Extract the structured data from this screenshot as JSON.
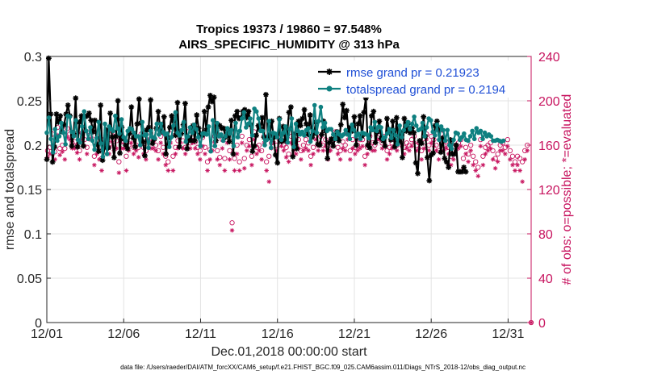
{
  "chart_data": {
    "type": "line",
    "title": "Tropics 19373 / 19860 = 97.548%",
    "subtitle": "AIRS_SPECIFIC_HUMIDITY @ 313 hPa",
    "xlabel": "Dec.01,2018 00:00:00 start",
    "ylabel": "rmse and totalspread",
    "ylabel_right": "# of obs: o=possible; *=evaluated",
    "footnote": "data file: /Users/raeder/DAI/ATM_forcXX/CAM6_setup/f.e21.FHIST_BGC.f09_025.CAM6assim.011/Diags_NTrS_2018-12/obs_diag_output.nc",
    "xlim": [
      0,
      31.5
    ],
    "ylim": [
      0,
      0.3
    ],
    "ylim_right": [
      0,
      240
    ],
    "x_ticks": [
      0,
      5,
      10,
      15,
      20,
      25,
      30
    ],
    "x_tick_labels": [
      "12/01",
      "12/06",
      "12/11",
      "12/16",
      "12/21",
      "12/26",
      "12/31"
    ],
    "y_ticks": [
      0,
      0.05,
      0.1,
      0.15,
      0.2,
      0.25,
      0.3
    ],
    "y_tick_labels": [
      "0",
      "0.05",
      "0.1",
      "0.15",
      "0.2",
      "0.25",
      "0.3"
    ],
    "y_right_ticks": [
      0,
      40,
      80,
      120,
      160,
      200,
      240
    ],
    "y_right_tick_labels": [
      "0",
      "40",
      "80",
      "120",
      "160",
      "200",
      "240"
    ],
    "grid": true,
    "legend_position": "top-right",
    "colors": {
      "rmse": "#000000",
      "spread": "#0e8080",
      "obs": "#c7135e",
      "legend_text": "#1f4fd6"
    },
    "series": [
      {
        "name": "rmse grand pr = 0.21923",
        "color": "#000000",
        "marker": "asterisk",
        "values": [
          0.184,
          0.298,
          0.235,
          0.181,
          0.198,
          0.235,
          0.226,
          0.233,
          0.215,
          0.223,
          0.235,
          0.245,
          0.233,
          0.199,
          0.213,
          0.253,
          0.198,
          0.226,
          0.233,
          0.199,
          0.232,
          0.233,
          0.236,
          0.228,
          0.215,
          0.228,
          0.201,
          0.193,
          0.245,
          0.183,
          0.197,
          0.217,
          0.197,
          0.236,
          0.209,
          0.186,
          0.21,
          0.25,
          0.191,
          0.22,
          0.207,
          0.2,
          0.196,
          0.213,
          0.243,
          0.208,
          0.198,
          0.224,
          0.252,
          0.225,
          0.204,
          0.188,
          0.217,
          0.22,
          0.251,
          0.202,
          0.207,
          0.219,
          0.238,
          0.218,
          0.215,
          0.232,
          0.19,
          0.208,
          0.22,
          0.233,
          0.227,
          0.211,
          0.248,
          0.198,
          0.213,
          0.223,
          0.247,
          0.196,
          0.208,
          0.205,
          0.222,
          0.205,
          0.234,
          0.219,
          0.213,
          0.211,
          0.238,
          0.217,
          0.243,
          0.256,
          0.249,
          0.254,
          0.205,
          0.223,
          0.222,
          0.219,
          0.219,
          0.209,
          0.217,
          0.204,
          0.228,
          0.19,
          0.233,
          0.238,
          0.23,
          0.231,
          0.238,
          0.24,
          0.231,
          0.238,
          0.223,
          0.193,
          0.199,
          0.211,
          0.222,
          0.218,
          0.231,
          0.209,
          0.257,
          0.208,
          0.212,
          0.227,
          0.209,
          0.189,
          0.18,
          0.23,
          0.204,
          0.221,
          0.205,
          0.211,
          0.237,
          0.243,
          0.187,
          0.213,
          0.196,
          0.227,
          0.222,
          0.23,
          0.24,
          0.224,
          0.212,
          0.234,
          0.209,
          0.213,
          0.226,
          0.201,
          0.2,
          0.212,
          0.227,
          0.216,
          0.185,
          0.203,
          0.207,
          0.199,
          0.208,
          0.215,
          0.205,
          0.223,
          0.246,
          0.231,
          0.239,
          0.212,
          0.22,
          0.216,
          0.232,
          0.2,
          0.224,
          0.233,
          0.21,
          0.237,
          0.253,
          0.2,
          0.197,
          0.233,
          0.238,
          0.203,
          0.215,
          0.227,
          0.208,
          0.205,
          0.199,
          0.23,
          0.217,
          0.206,
          0.227,
          0.198,
          0.231,
          0.204,
          0.215,
          0.186,
          0.23,
          0.216,
          0.225,
          0.214,
          0.219,
          0.214,
          0.18,
          0.168,
          0.205,
          0.202,
          0.232,
          0.21,
          0.186,
          0.16,
          0.189,
          0.191,
          0.222,
          0.227,
          0.217,
          0.192,
          0.208,
          0.185,
          0.181,
          0.175,
          0.206,
          0.19,
          0.19,
          0.2,
          0.17,
          0.17,
          0.17,
          0.175,
          0.17
        ],
        "x_step": 0.125
      },
      {
        "name": "totalspread grand pr = 0.2194",
        "color": "#0e8080",
        "marker": "circle",
        "values": [
          0.214,
          0.231,
          0.207,
          0.192,
          0.218,
          0.205,
          0.21,
          0.225,
          0.214,
          0.201,
          0.233,
          0.232,
          0.215,
          0.21,
          0.228,
          0.206,
          0.203,
          0.221,
          0.238,
          0.216,
          0.207,
          0.22,
          0.205,
          0.195,
          0.208,
          0.226,
          0.202,
          0.187,
          0.224,
          0.19,
          0.221,
          0.218,
          0.216,
          0.233,
          0.219,
          0.213,
          0.229,
          0.209,
          0.205,
          0.216,
          0.219,
          0.218,
          0.214,
          0.21,
          0.21,
          0.2,
          0.226,
          0.211,
          0.212,
          0.197,
          0.216,
          0.209,
          0.208,
          0.224,
          0.212,
          0.224,
          0.215,
          0.212,
          0.213,
          0.198,
          0.209,
          0.222,
          0.237,
          0.214,
          0.211,
          0.217,
          0.226,
          0.204,
          0.21,
          0.22,
          0.214,
          0.223,
          0.218,
          0.209,
          0.199,
          0.213,
          0.213,
          0.212,
          0.221,
          0.193,
          0.228,
          0.199,
          0.225,
          0.21,
          0.212,
          0.205,
          0.21,
          0.219,
          0.213,
          0.217,
          0.199,
          0.225,
          0.209,
          0.216,
          0.23,
          0.237,
          0.22,
          0.224,
          0.23,
          0.211,
          0.241,
          0.238,
          0.23,
          0.216,
          0.216,
          0.2,
          0.206,
          0.227,
          0.197,
          0.214,
          0.213,
          0.209,
          0.229,
          0.206,
          0.214,
          0.221,
          0.203,
          0.218,
          0.23,
          0.198,
          0.224,
          0.216,
          0.212,
          0.215,
          0.211,
          0.217,
          0.219,
          0.204,
          0.216,
          0.245,
          0.214,
          0.227,
          0.243,
          0.22,
          0.225,
          0.216,
          0.218,
          0.218,
          0.212,
          0.207,
          0.215,
          0.212,
          0.21,
          0.212,
          0.217,
          0.212,
          0.207,
          0.223,
          0.217,
          0.21,
          0.213,
          0.207,
          0.214,
          0.213,
          0.212,
          0.208,
          0.22,
          0.217,
          0.226,
          0.216,
          0.221,
          0.22,
          0.207,
          0.209,
          0.213,
          0.218,
          0.208,
          0.217,
          0.211,
          0.201,
          0.222,
          0.209,
          0.217,
          0.222,
          0.226,
          0.218,
          0.224,
          0.232,
          0.222,
          0.217,
          0.218,
          0.225,
          0.21,
          0.22,
          0.23,
          0.228,
          0.215,
          0.211,
          0.223,
          0.206,
          0.221,
          0.217,
          0.205,
          0.217,
          0.2,
          0.196,
          0.206,
          0.214,
          0.213,
          0.206,
          0.209,
          0.213,
          0.206,
          0.205,
          0.21,
          0.216,
          0.207,
          0.219,
          0.214,
          0.216,
          0.207,
          0.214,
          0.21,
          0.212,
          0.21,
          0.205,
          0.205,
          0.206,
          0.205,
          0.204,
          0.205
        ],
        "x_step": 0.135
      },
      {
        "name": "obs possible",
        "axis": "right",
        "color": "#c7135e",
        "marker": "open-circle",
        "values": [
          155,
          158,
          170,
          154,
          176,
          157,
          160,
          157,
          175,
          170,
          162,
          163,
          159,
          155,
          171,
          165,
          158,
          172,
          173,
          150,
          159,
          155,
          148,
          165,
          173,
          158,
          170,
          160,
          164,
          145,
          163,
          163,
          150,
          160,
          168,
          158,
          160,
          158,
          170,
          158,
          155,
          172,
          162,
          164,
          160,
          155,
          168,
          158,
          150,
          145,
          170,
          150,
          158,
          164,
          170,
          164,
          158,
          172,
          162,
          168,
          163,
          158,
          155,
          167,
          158,
          145,
          156,
          161,
          168,
          155,
          149,
          165,
          148,
          170,
          155,
          90,
          148,
          160,
          145,
          168,
          148,
          160,
          165,
          150,
          172,
          158,
          160,
          155,
          168,
          145,
          150,
          162,
          168,
          160,
          170,
          165,
          160,
          158,
          152,
          168,
          160,
          160,
          165,
          155,
          160,
          165,
          162,
          150,
          158,
          172,
          160,
          168,
          160,
          165,
          155,
          160,
          165,
          172,
          158,
          155,
          163,
          160,
          170,
          155,
          165,
          158,
          160,
          165,
          165,
          150,
          158,
          168,
          162,
          160,
          172,
          170,
          162,
          168,
          155,
          158,
          162,
          165,
          160,
          168,
          165,
          158,
          162,
          160,
          165,
          168,
          160,
          162,
          155,
          162,
          170,
          160,
          168,
          165,
          160,
          155,
          170,
          160,
          163,
          158,
          150,
          155,
          160,
          162,
          165,
          148,
          158,
          152,
          160,
          150,
          145,
          140,
          165,
          150,
          158,
          160,
          162,
          155,
          148,
          152,
          160,
          162,
          158,
          165,
          155,
          150,
          145,
          150,
          148,
          145,
          155,
          160,
          158
        ],
        "x_step": 0.16
      },
      {
        "name": "obs evaluated",
        "axis": "right",
        "color": "#c7135e",
        "marker": "asterisk",
        "values": [
          152,
          155,
          162,
          150,
          172,
          154,
          157,
          150,
          170,
          168,
          160,
          160,
          156,
          150,
          168,
          162,
          155,
          168,
          170,
          145,
          155,
          150,
          140,
          162,
          170,
          155,
          166,
          158,
          160,
          138,
          160,
          160,
          140,
          158,
          165,
          155,
          158,
          152,
          168,
          155,
          150,
          168,
          160,
          160,
          158,
          150,
          165,
          155,
          145,
          140,
          165,
          140,
          155,
          160,
          165,
          160,
          155,
          168,
          160,
          165,
          160,
          155,
          150,
          162,
          155,
          140,
          150,
          158,
          165,
          150,
          145,
          160,
          140,
          165,
          150,
          86,
          140,
          155,
          140,
          165,
          142,
          158,
          162,
          145,
          168,
          155,
          158,
          150,
          165,
          140,
          130,
          160,
          165,
          158,
          168,
          162,
          158,
          152,
          148,
          165,
          158,
          155,
          160,
          150,
          158,
          160,
          158,
          145,
          155,
          168,
          158,
          165,
          158,
          162,
          150,
          158,
          162,
          168,
          155,
          150,
          160,
          158,
          168,
          150,
          160,
          155,
          158,
          160,
          162,
          145,
          155,
          165,
          158,
          158,
          168,
          168,
          160,
          165,
          150,
          155,
          160,
          162,
          158,
          165,
          162,
          155,
          160,
          158,
          162,
          165,
          158,
          160,
          150,
          160,
          168,
          158,
          165,
          162,
          158,
          150,
          168,
          158,
          160,
          155,
          145,
          150,
          158,
          160,
          162,
          142,
          155,
          148,
          158,
          145,
          140,
          135,
          162,
          145,
          155,
          158,
          160,
          150,
          142,
          148,
          158,
          158,
          155,
          162,
          150,
          145,
          140,
          145,
          140,
          130,
          150,
          158,
          155
        ],
        "x_step": 0.16
      }
    ]
  }
}
